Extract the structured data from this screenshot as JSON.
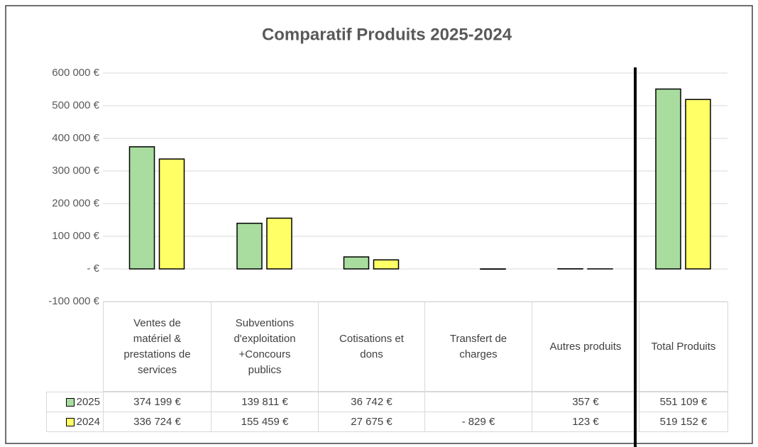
{
  "chart_data": {
    "type": "bar",
    "title": "Comparatif Produits 2025-2024",
    "categories": [
      "Ventes de matériel & prestations de services",
      "Subventions d'exploitation +Concours publics",
      "Cotisations et dons",
      "Transfert de charges",
      "Autres produits",
      "Total Produits"
    ],
    "series": [
      {
        "name": "2025",
        "color": "#a9dc9f",
        "values": [
          374199,
          139811,
          36742,
          null,
          357,
          551109
        ],
        "value_labels": [
          "374 199 €",
          "139 811 €",
          "36 742 €",
          null,
          "357 €",
          "551 109 €"
        ]
      },
      {
        "name": "2024",
        "color": "#ffff66",
        "values": [
          336724,
          155459,
          27675,
          -829,
          123,
          519152
        ],
        "value_labels": [
          "336 724 €",
          "155 459 €",
          "27 675 €",
          "- 829 €",
          "123 €",
          "519 152 €"
        ]
      }
    ],
    "ylim": [
      -100000,
      600000
    ],
    "yticks": [
      {
        "value": -100000,
        "label": "-100 000 €"
      },
      {
        "value": 0,
        "label": "-   €"
      },
      {
        "value": 100000,
        "label": "100 000 €"
      },
      {
        "value": 200000,
        "label": "200 000 €"
      },
      {
        "value": 300000,
        "label": "300 000 €"
      },
      {
        "value": 400000,
        "label": "400 000 €"
      },
      {
        "value": 500000,
        "label": "500 000 €"
      },
      {
        "value": 600000,
        "label": "600 000 €"
      }
    ],
    "grid": true
  }
}
